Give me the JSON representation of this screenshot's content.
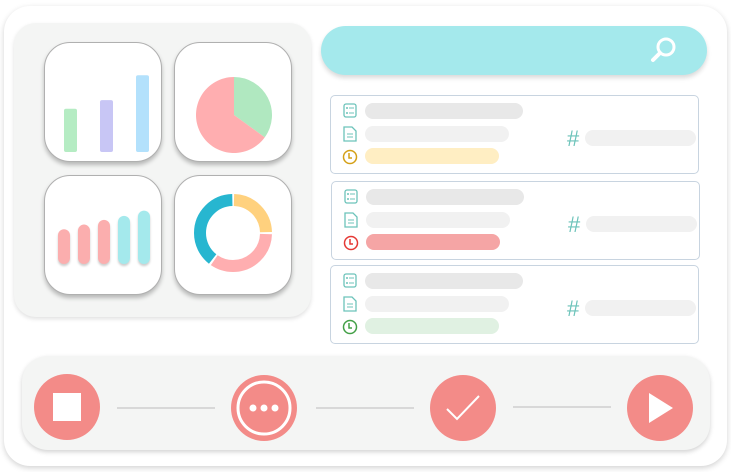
{
  "colors": {
    "accent": "#a4e9ec",
    "action": "#f38b88",
    "panel": "#f4f5f4",
    "icon_teal": "#6cc3ba"
  },
  "widgets": {
    "bar_chart": {
      "levels": [
        0.45,
        0.54,
        0.8
      ],
      "colors": [
        "#b5ecc3",
        "#c8c6f5",
        "#b3e1fc"
      ]
    },
    "pie_chart": {
      "slices": [
        {
          "fraction": 0.35,
          "color": "#b0e8c0"
        },
        {
          "fraction": 0.65,
          "color": "#ffaeb0"
        }
      ]
    },
    "pill_chart": {
      "levels": [
        0.6,
        0.68,
        0.76,
        0.83,
        0.92
      ],
      "colors": [
        "#fbaeae",
        "#fbaeae",
        "#fbaeae",
        "#a4e9ec",
        "#a4e9ec"
      ]
    },
    "donut_chart": {
      "slices": [
        {
          "fraction": 0.25,
          "color": "#ffd17e"
        },
        {
          "fraction": 0.35,
          "color": "#ffaeb0"
        },
        {
          "fraction": 0.4,
          "color": "#27b6d0"
        }
      ]
    }
  },
  "search": {
    "icon": "search-icon"
  },
  "tasks": [
    {
      "icons": [
        "checklist-icon",
        "document-icon",
        "clock-icon",
        "hash-icon"
      ],
      "status_color": "#ffeec3",
      "clock_color": "#d4a017",
      "hash": "#"
    },
    {
      "icons": [
        "checklist-icon",
        "document-icon",
        "clock-icon",
        "hash-icon"
      ],
      "status_color": "#f5a5a5",
      "clock_color": "#e53935",
      "hash": "#"
    },
    {
      "icons": [
        "checklist-icon",
        "document-icon",
        "clock-icon",
        "hash-icon"
      ],
      "status_color": "#e0f1e2",
      "clock_color": "#43a047",
      "hash": "#"
    }
  ],
  "controls": [
    {
      "icon": "stop-icon"
    },
    {
      "icon": "more-icon"
    },
    {
      "icon": "check-icon"
    },
    {
      "icon": "play-icon"
    }
  ]
}
